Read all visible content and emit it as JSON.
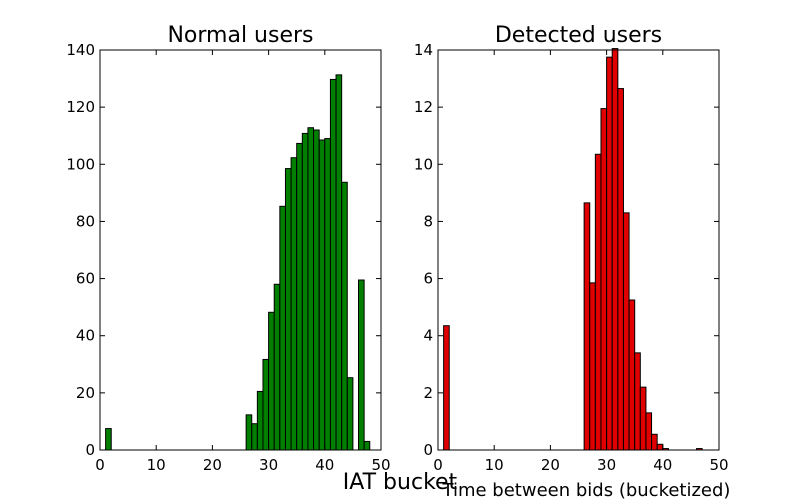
{
  "figure": {
    "xlabel_main": "IAT bucket",
    "xlabel_right": "Time between bids (bucketized)"
  },
  "chart_data": [
    {
      "type": "bar",
      "title": "Normal users",
      "xlabel": "",
      "ylabel": "",
      "color": "#007f00",
      "xlim": [
        0,
        50
      ],
      "ylim": [
        0,
        140
      ],
      "xticks": [
        0,
        10,
        20,
        30,
        40,
        50
      ],
      "yticks": [
        0,
        20,
        40,
        60,
        80,
        100,
        120,
        140
      ],
      "bin_width": 1,
      "bars": [
        {
          "x": 1,
          "value": 7.5
        },
        {
          "x": 26,
          "value": 12.3
        },
        {
          "x": 27,
          "value": 9.2
        },
        {
          "x": 28,
          "value": 20.5
        },
        {
          "x": 29,
          "value": 31.7
        },
        {
          "x": 30,
          "value": 48.2
        },
        {
          "x": 31,
          "value": 58.0
        },
        {
          "x": 32,
          "value": 85.3
        },
        {
          "x": 33,
          "value": 98.5
        },
        {
          "x": 34,
          "value": 102.3
        },
        {
          "x": 35,
          "value": 107.3
        },
        {
          "x": 36,
          "value": 110.8
        },
        {
          "x": 37,
          "value": 112.8
        },
        {
          "x": 38,
          "value": 112.0
        },
        {
          "x": 39,
          "value": 108.5
        },
        {
          "x": 40,
          "value": 109.0
        },
        {
          "x": 41,
          "value": 129.7
        },
        {
          "x": 42,
          "value": 131.3
        },
        {
          "x": 43,
          "value": 93.7
        },
        {
          "x": 44,
          "value": 25.3
        },
        {
          "x": 46,
          "value": 59.5
        },
        {
          "x": 47,
          "value": 3.0
        }
      ]
    },
    {
      "type": "bar",
      "title": "Detected users",
      "xlabel": "Time between bids (bucketized)",
      "ylabel": "",
      "color": "#e00000",
      "xlim": [
        0,
        50
      ],
      "ylim": [
        0,
        14
      ],
      "xticks": [
        0,
        10,
        20,
        30,
        40,
        50
      ],
      "yticks": [
        0,
        2,
        4,
        6,
        8,
        10,
        12,
        14
      ],
      "bin_width": 1,
      "bars": [
        {
          "x": 1,
          "value": 4.35
        },
        {
          "x": 26,
          "value": 8.65
        },
        {
          "x": 27,
          "value": 5.85
        },
        {
          "x": 28,
          "value": 10.35
        },
        {
          "x": 29,
          "value": 11.95
        },
        {
          "x": 30,
          "value": 13.75
        },
        {
          "x": 31,
          "value": 14.05
        },
        {
          "x": 32,
          "value": 12.65
        },
        {
          "x": 33,
          "value": 8.3
        },
        {
          "x": 34,
          "value": 5.25
        },
        {
          "x": 35,
          "value": 3.4
        },
        {
          "x": 36,
          "value": 2.2
        },
        {
          "x": 37,
          "value": 1.3
        },
        {
          "x": 38,
          "value": 0.55
        },
        {
          "x": 39,
          "value": 0.2
        },
        {
          "x": 40,
          "value": 0.05
        },
        {
          "x": 46,
          "value": 0.05
        }
      ]
    }
  ]
}
